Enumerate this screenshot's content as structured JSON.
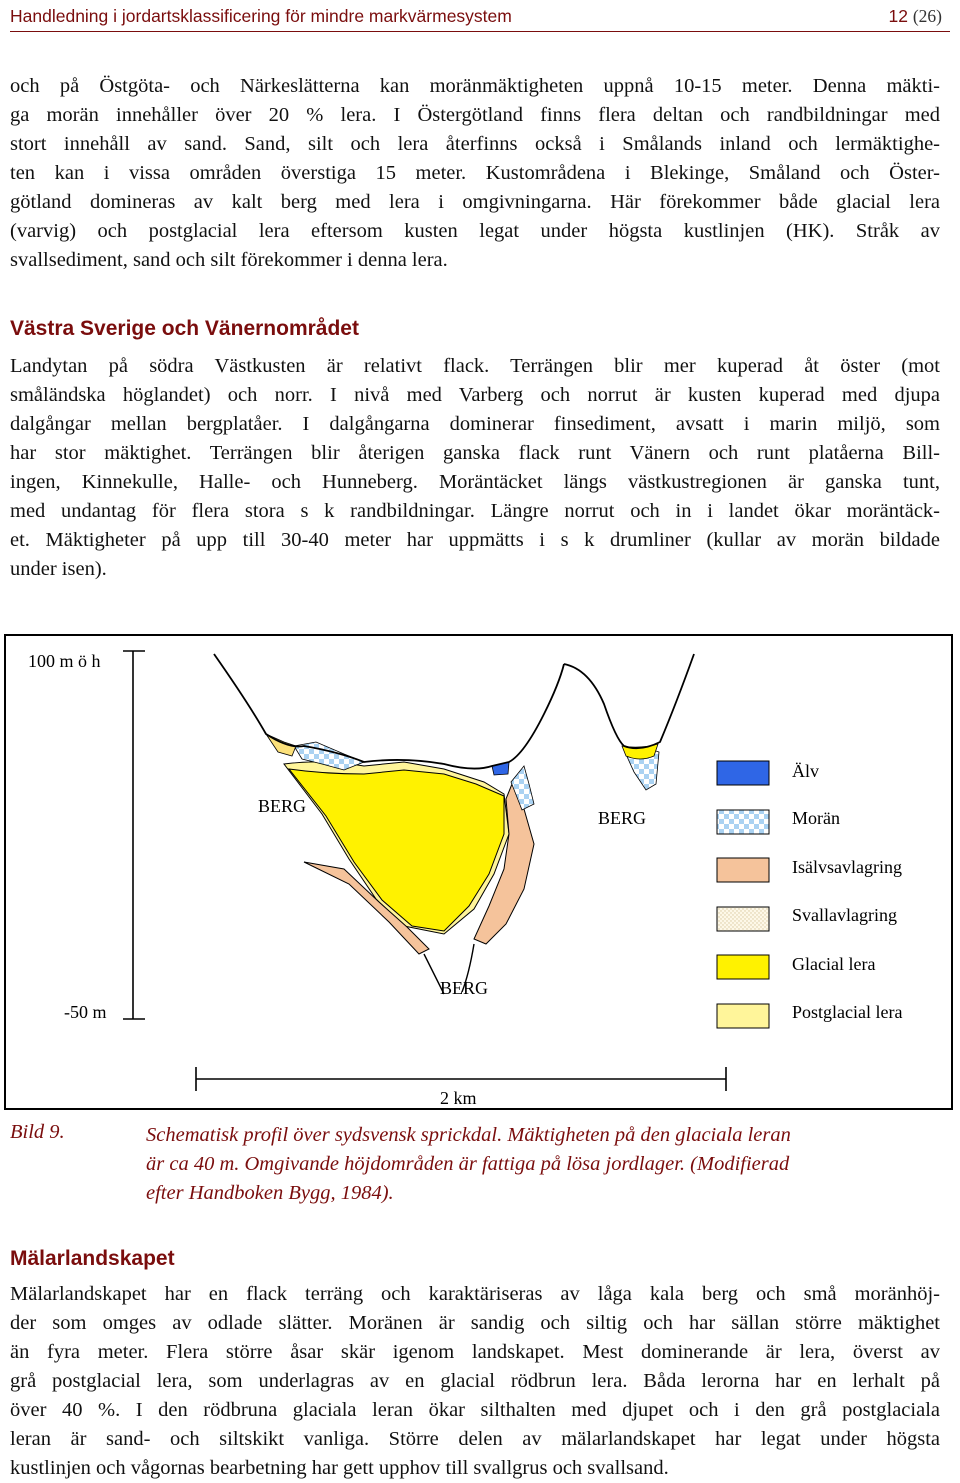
{
  "header": {
    "title": "Handledning i jordartsklassificering för mindre markvärmesystem",
    "page": "12",
    "page_total": "(26)"
  },
  "para1": {
    "lines": [
      "och på Östgöta- och Närkeslätterna kan moränmäktigheten uppnå 10-15 meter. Denna mäkti-",
      "ga morän innehåller över 20 % lera. I Östergötland finns flera deltan och randbildningar med",
      "stort innehåll av sand. Sand, silt och lera återfinns också i Smålands inland och lermäktighe-",
      "ten kan i vissa områden överstiga 15 meter. Kustområdena i Blekinge, Småland och Öster-",
      "götland domineras av kalt berg med lera i omgivningarna. Här förekommer både glacial lera",
      "(varvig) och postglacial lera eftersom kusten legat under högsta kustlinjen (HK). Stråk av",
      "svallsediment, sand och silt förekommer i denna lera."
    ]
  },
  "section1": {
    "heading": "Västra Sverige och Vänernområdet",
    "lines": [
      "Landytan på södra Västkusten är relativt flack. Terrängen blir mer kuperad åt öster (mot",
      "småländska höglandet) och norr. I nivå med Varberg och norrut är kusten kuperad med djupa",
      "dalgångar mellan bergplatåer. I dalgångarna dominerar finsediment, avsatt i marin miljö, som",
      "har stor mäktighet. Terrängen blir återigen ganska flack runt Vänern och runt platåerna Bill-",
      "ingen, Kinnekulle, Halle- och Hunneberg. Moräntäcket längs västkustregionen är ganska tunt,",
      "med undantag för flera stora s k randbildningar. Längre norrut och in i landet ökar moräntäck-",
      "et. Mäktigheter på upp till 30-40 meter har uppmätts i s k drumliner (kullar av morän bildade",
      "under isen)."
    ]
  },
  "figure": {
    "top_label": "100 m ö h",
    "bottom_label": "-50 m",
    "scale_label": "2 km",
    "berg_left": "BERG",
    "berg_mid": "BERG",
    "berg_bottom": "BERG",
    "legend": [
      {
        "label": "Älv",
        "color": "#2f66e6"
      },
      {
        "label": "Morän",
        "color": "#b9dbf6"
      },
      {
        "label": "Isälvsavlagring",
        "color": "#f5c39b"
      },
      {
        "label": "Svallavlagring",
        "color": "#fbf5e1"
      },
      {
        "label": "Glacial lera",
        "color": "#fff200"
      },
      {
        "label": "Postglacial lera",
        "color": "#fff59a"
      }
    ]
  },
  "caption": {
    "label": "Bild 9.",
    "lines": [
      "Schematisk profil över sydsvensk sprickdal. Mäktigheten på den glaciala leran",
      "är ca 40 m. Omgivande höjdområden är fattiga på lösa jordlager. (Modifierad",
      "efter Handboken Bygg, 1984)."
    ]
  },
  "section2": {
    "heading": "Mälarlandskapet",
    "lines": [
      "Mälarlandskapet har en flack terräng och karaktäriseras av låga kala berg och små moränhöj-",
      "der som omges av odlade slätter. Moränen är sandig och siltig och har sällan större mäktighet",
      "än fyra meter. Flera större åsar skär igenom landskapet. Mest dominerande är lera, överst av",
      "grå postglacial lera, som underlagras av en glacial rödbrun lera. Båda lerorna har en lerhalt på",
      "över 40 %. I den rödbruna glaciala leran ökar silthalten med djupet och i den grå postglaciala",
      "leran är sand- och siltskikt vanliga. Större delen av mälarlandskapet har legat under högsta",
      "kustlinjen och vågornas bearbetning har gett upphov till svallgrus och svallsand."
    ]
  }
}
